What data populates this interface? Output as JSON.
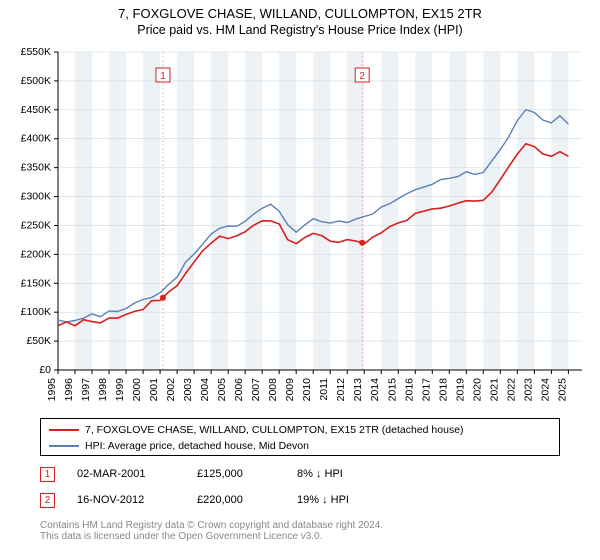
{
  "title": "7, FOXGLOVE CHASE, WILLAND, CULLOMPTON, EX15 2TR",
  "subtitle": "Price paid vs. HM Land Registry's House Price Index (HPI)",
  "chart": {
    "type": "line",
    "background_color": "#ffffff",
    "alt_band_color": "#edf2f7",
    "grid_color": "#cfd6dc",
    "axis_color": "#000000",
    "x": {
      "min": 1995,
      "max": 2025.8,
      "ticks": [
        1995,
        1996,
        1997,
        1998,
        1999,
        2000,
        2001,
        2002,
        2003,
        2004,
        2005,
        2006,
        2007,
        2008,
        2009,
        2010,
        2011,
        2012,
        2013,
        2014,
        2015,
        2016,
        2017,
        2018,
        2019,
        2020,
        2021,
        2022,
        2023,
        2024,
        2025
      ],
      "label_fontsize": 10.5
    },
    "y": {
      "min": 0,
      "max": 550000,
      "tick_step": 50000,
      "label_fontsize": 10.5,
      "currency_prefix": "£",
      "ticks": [
        "£0",
        "£50K",
        "£100K",
        "£150K",
        "£200K",
        "£250K",
        "£300K",
        "£350K",
        "£400K",
        "£450K",
        "£500K",
        "£550K"
      ]
    },
    "series": [
      {
        "name": "hpi",
        "label": "HPI: Average price, detached house, Mid Devon",
        "color": "#5b7fb5",
        "line_width": 1.4,
        "data": [
          [
            1995,
            88000
          ],
          [
            1995.5,
            85000
          ],
          [
            1996,
            85000
          ],
          [
            1996.5,
            90000
          ],
          [
            1997,
            92000
          ],
          [
            1997.5,
            94000
          ],
          [
            1998,
            98000
          ],
          [
            1998.5,
            100000
          ],
          [
            1999,
            105000
          ],
          [
            1999.5,
            112000
          ],
          [
            2000,
            123000
          ],
          [
            2000.5,
            130000
          ],
          [
            2001,
            138000
          ],
          [
            2001.5,
            148000
          ],
          [
            2002,
            160000
          ],
          [
            2002.5,
            182000
          ],
          [
            2003,
            200000
          ],
          [
            2003.5,
            220000
          ],
          [
            2004,
            240000
          ],
          [
            2004.5,
            250000
          ],
          [
            2005,
            248000
          ],
          [
            2005.5,
            250000
          ],
          [
            2006,
            258000
          ],
          [
            2006.5,
            268000
          ],
          [
            2007,
            278000
          ],
          [
            2007.5,
            285000
          ],
          [
            2008,
            275000
          ],
          [
            2008.5,
            250000
          ],
          [
            2009,
            240000
          ],
          [
            2009.5,
            250000
          ],
          [
            2010,
            260000
          ],
          [
            2010.5,
            258000
          ],
          [
            2011,
            255000
          ],
          [
            2011.5,
            253000
          ],
          [
            2012,
            255000
          ],
          [
            2012.5,
            260000
          ],
          [
            2013,
            265000
          ],
          [
            2013.5,
            272000
          ],
          [
            2014,
            280000
          ],
          [
            2014.5,
            288000
          ],
          [
            2015,
            295000
          ],
          [
            2015.5,
            300000
          ],
          [
            2016,
            308000
          ],
          [
            2016.5,
            315000
          ],
          [
            2017,
            320000
          ],
          [
            2017.5,
            328000
          ],
          [
            2018,
            332000
          ],
          [
            2018.5,
            335000
          ],
          [
            2019,
            338000
          ],
          [
            2019.5,
            340000
          ],
          [
            2020,
            345000
          ],
          [
            2020.5,
            360000
          ],
          [
            2021,
            380000
          ],
          [
            2021.5,
            405000
          ],
          [
            2022,
            430000
          ],
          [
            2022.5,
            450000
          ],
          [
            2023,
            445000
          ],
          [
            2023.5,
            435000
          ],
          [
            2024,
            430000
          ],
          [
            2024.5,
            438000
          ],
          [
            2025,
            425000
          ]
        ]
      },
      {
        "name": "property",
        "label": "7, FOXGLOVE CHASE, WILLAND, CULLOMPTON, EX15 2TR (detached house)",
        "color": "#d81e1e",
        "line_width": 1.6,
        "data": [
          [
            1995,
            80000
          ],
          [
            1995.5,
            78000
          ],
          [
            1996,
            78000
          ],
          [
            1996.5,
            82000
          ],
          [
            1997,
            84000
          ],
          [
            1997.5,
            86000
          ],
          [
            1998,
            88000
          ],
          [
            1998.5,
            90000
          ],
          [
            1999,
            95000
          ],
          [
            1999.5,
            100000
          ],
          [
            2000,
            108000
          ],
          [
            2000.5,
            115000
          ],
          [
            2001,
            125000
          ],
          [
            2001.5,
            135000
          ],
          [
            2002,
            148000
          ],
          [
            2002.5,
            167000
          ],
          [
            2003,
            185000
          ],
          [
            2003.5,
            205000
          ],
          [
            2004,
            222000
          ],
          [
            2004.5,
            230000
          ],
          [
            2005,
            228000
          ],
          [
            2005.5,
            230000
          ],
          [
            2006,
            238000
          ],
          [
            2006.5,
            247000
          ],
          [
            2007,
            257000
          ],
          [
            2007.5,
            263000
          ],
          [
            2008,
            254000
          ],
          [
            2008.5,
            228000
          ],
          [
            2009,
            218000
          ],
          [
            2009.5,
            226000
          ],
          [
            2010,
            235000
          ],
          [
            2010.5,
            232000
          ],
          [
            2011,
            228000
          ],
          [
            2011.5,
            225000
          ],
          [
            2012,
            225000
          ],
          [
            2012.5,
            228000
          ],
          [
            2012.88,
            220000
          ],
          [
            2013,
            223000
          ],
          [
            2013.5,
            234000
          ],
          [
            2014,
            242000
          ],
          [
            2014.5,
            249000
          ],
          [
            2015,
            255000
          ],
          [
            2015.5,
            260000
          ],
          [
            2016,
            266000
          ],
          [
            2016.5,
            272000
          ],
          [
            2017,
            277000
          ],
          [
            2017.5,
            283000
          ],
          [
            2018,
            287000
          ],
          [
            2018.5,
            290000
          ],
          [
            2019,
            292000
          ],
          [
            2019.5,
            294000
          ],
          [
            2020,
            298000
          ],
          [
            2020.5,
            311000
          ],
          [
            2021,
            328000
          ],
          [
            2021.5,
            350000
          ],
          [
            2022,
            372000
          ],
          [
            2022.5,
            388000
          ],
          [
            2023,
            383000
          ],
          [
            2023.5,
            375000
          ],
          [
            2024,
            369000
          ],
          [
            2024.5,
            376000
          ],
          [
            2025,
            365000
          ]
        ]
      }
    ],
    "sale_markers": [
      {
        "n": 1,
        "year": 2001.17,
        "price": 125000,
        "date": "02-MAR-2001",
        "diff": "8% ↓ HPI",
        "color": "#d81e1e"
      },
      {
        "n": 2,
        "year": 2012.88,
        "price": 220000,
        "date": "16-NOV-2012",
        "diff": "19% ↓ HPI",
        "color": "#d81e1e"
      }
    ]
  },
  "footer": {
    "line1": "Contains HM Land Registry data © Crown copyright and database right 2024.",
    "line2": "This data is licensed under the Open Government Licence v3.0."
  }
}
